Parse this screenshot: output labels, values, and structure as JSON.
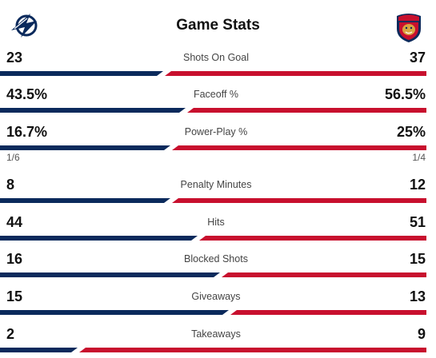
{
  "title": "Game Stats",
  "teams": {
    "home": {
      "logo": "lightning-bolt-logo",
      "color": "#0b2a5c"
    },
    "away": {
      "logo": "panther-logo",
      "color": "#c8102e"
    }
  },
  "stats": [
    {
      "label": "Shots On Goal",
      "home": "23",
      "away": "37",
      "home_share": 0.383
    },
    {
      "label": "Faceoff %",
      "home": "43.5%",
      "away": "56.5%",
      "home_share": 0.435
    },
    {
      "label": "Power-Play %",
      "home": "16.7%",
      "away": "25%",
      "home_share": 0.4,
      "home_sub": "1/6",
      "away_sub": "1/4"
    },
    {
      "label": "Penalty Minutes",
      "home": "8",
      "away": "12",
      "home_share": 0.4
    },
    {
      "label": "Hits",
      "home": "44",
      "away": "51",
      "home_share": 0.463
    },
    {
      "label": "Blocked Shots",
      "home": "16",
      "away": "15",
      "home_share": 0.516
    },
    {
      "label": "Giveaways",
      "home": "15",
      "away": "13",
      "home_share": 0.536
    },
    {
      "label": "Takeaways",
      "home": "2",
      "away": "9",
      "home_share": 0.182
    }
  ]
}
